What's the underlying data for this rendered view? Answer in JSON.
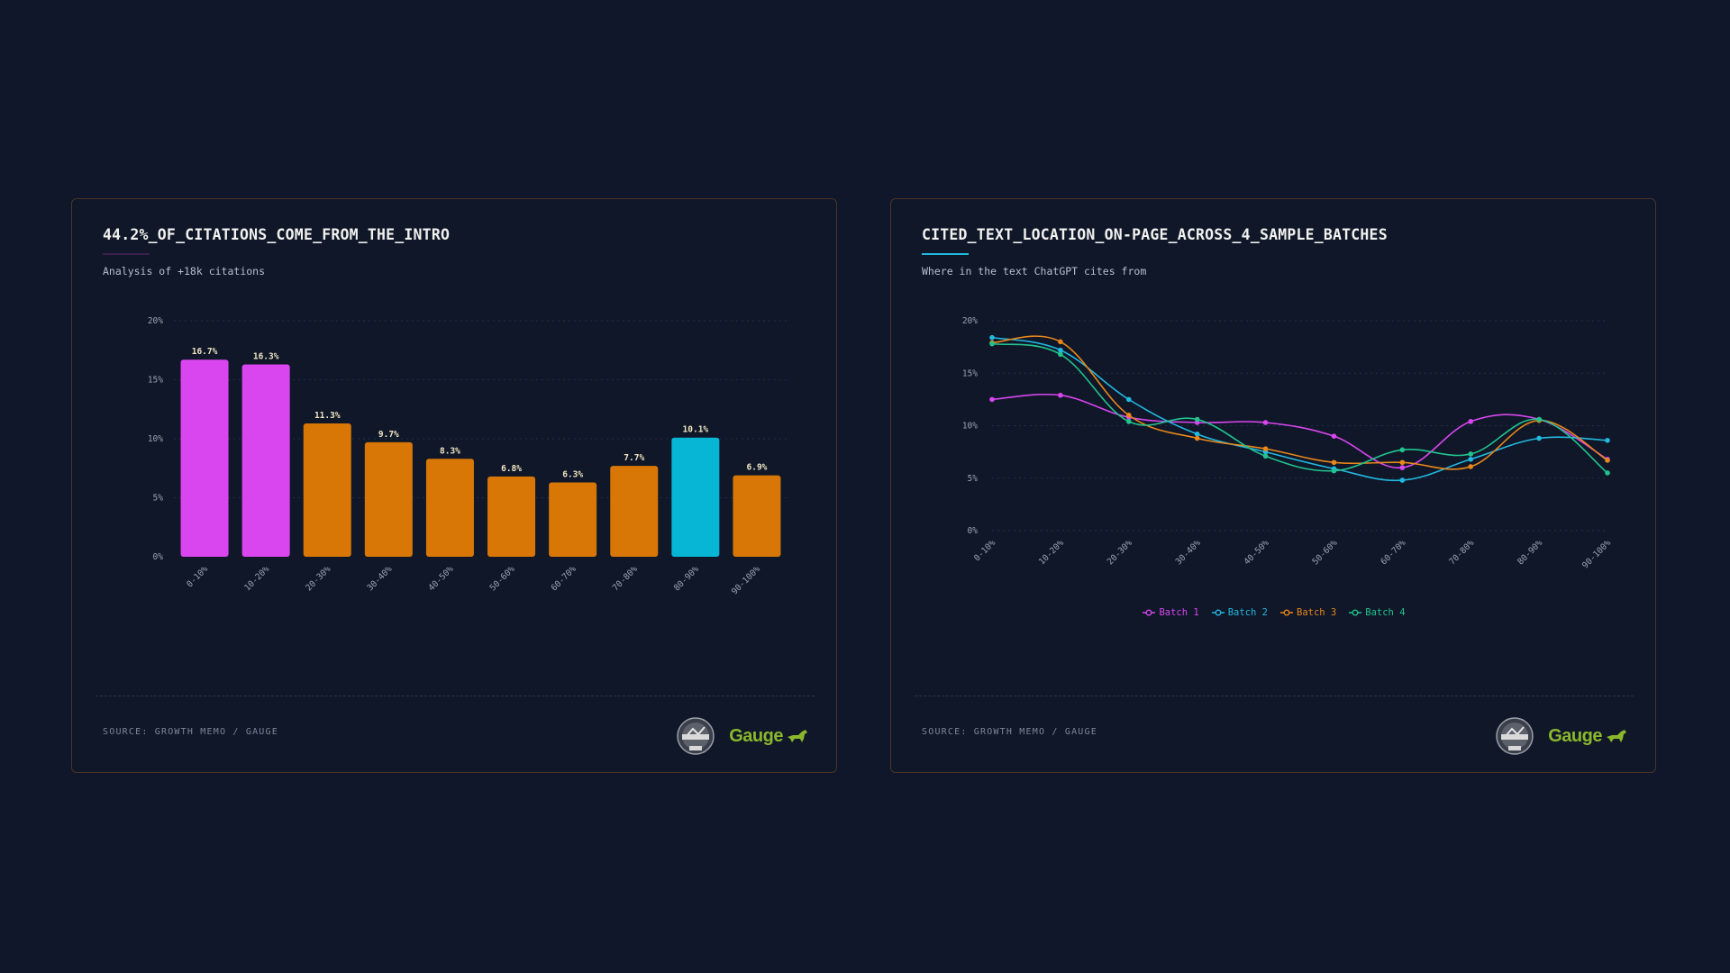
{
  "colors": {
    "intro": "#d946ef",
    "middle": "#d97706",
    "highlight": "#06b6d4",
    "batch1": "#d946ef",
    "batch2": "#22b8e0",
    "batch3": "#e8871a",
    "batch4": "#22c38e",
    "brand_green": "#8bb82b"
  },
  "left_card": {
    "title": "44.2%_OF_CITATIONS_COME_FROM_THE_INTRO",
    "subtitle": "Analysis of +18k citations",
    "source": "SOURCE: GROWTH MEMO / GAUGE",
    "underline_color": "#3b1f4a"
  },
  "right_card": {
    "title": "CITED_TEXT_LOCATION_ON-PAGE_ACROSS_4_SAMPLE_BATCHES",
    "subtitle": "Where in the text ChatGPT cites from",
    "source": "SOURCE: GROWTH MEMO / GAUGE",
    "underline_color": "#22b8e0"
  },
  "logos": {
    "gauge": "Gauge",
    "growth_memo_icon": "growth-memo-badge-icon",
    "gauge_icon": "dog-icon"
  },
  "chart_data": [
    {
      "type": "bar",
      "categories": [
        "0-10%",
        "10-20%",
        "20-30%",
        "30-40%",
        "40-50%",
        "50-60%",
        "60-70%",
        "70-80%",
        "80-90%",
        "90-100%"
      ],
      "values": [
        16.7,
        16.3,
        11.3,
        9.7,
        8.3,
        6.8,
        6.3,
        7.7,
        10.1,
        6.9
      ],
      "value_labels": [
        "16.7%",
        "16.3%",
        "11.3%",
        "9.7%",
        "8.3%",
        "6.8%",
        "6.3%",
        "7.7%",
        "10.1%",
        "6.9%"
      ],
      "bar_color_keys": [
        "intro",
        "intro",
        "middle",
        "middle",
        "middle",
        "middle",
        "middle",
        "middle",
        "highlight",
        "middle"
      ],
      "yticks": [
        0,
        5,
        10,
        15,
        20
      ],
      "ytick_labels": [
        "0%",
        "5%",
        "10%",
        "15%",
        "20%"
      ],
      "ylim": [
        0,
        20
      ],
      "grid": true
    },
    {
      "type": "line",
      "categories": [
        "0-10%",
        "10-20%",
        "20-30%",
        "30-40%",
        "40-50%",
        "50-60%",
        "60-70%",
        "70-80%",
        "80-90%",
        "90-100%"
      ],
      "series": [
        {
          "name": "Batch 1",
          "color_key": "batch1",
          "values": [
            12.5,
            12.9,
            10.8,
            10.3,
            10.3,
            9.0,
            6.0,
            10.4,
            10.6,
            6.8
          ]
        },
        {
          "name": "Batch 2",
          "color_key": "batch2",
          "values": [
            18.4,
            17.2,
            12.5,
            9.2,
            7.5,
            5.9,
            4.8,
            6.8,
            8.8,
            8.6
          ]
        },
        {
          "name": "Batch 3",
          "color_key": "batch3",
          "values": [
            17.9,
            18.0,
            11.0,
            8.8,
            7.8,
            6.5,
            6.5,
            6.1,
            10.5,
            6.7
          ]
        },
        {
          "name": "Batch 4",
          "color_key": "batch4",
          "values": [
            17.8,
            16.8,
            10.4,
            10.6,
            7.1,
            5.7,
            7.7,
            7.3,
            10.6,
            5.5
          ]
        }
      ],
      "yticks": [
        0,
        5,
        10,
        15,
        20
      ],
      "ytick_labels": [
        "0%",
        "5%",
        "10%",
        "15%",
        "20%"
      ],
      "ylim": [
        0,
        20
      ],
      "legend": "bottom-center",
      "grid": true
    }
  ]
}
